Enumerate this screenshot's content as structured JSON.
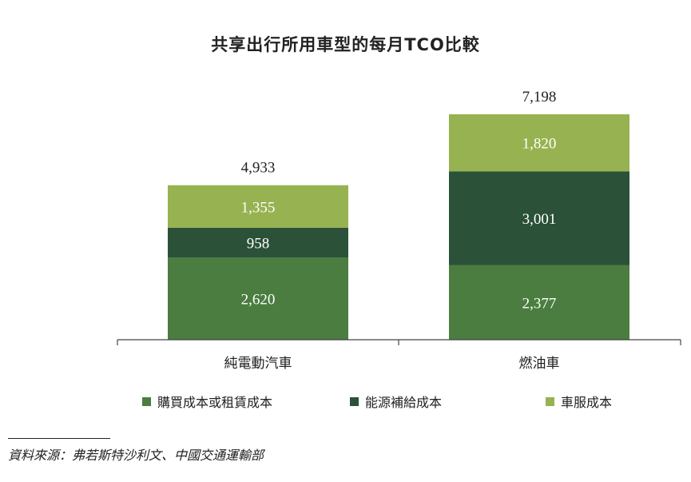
{
  "chart_data": {
    "type": "bar",
    "stacked": true,
    "title": "共享出行所用車型的每月TCO比較",
    "categories": [
      "純電動汽車",
      "燃油車"
    ],
    "series": [
      {
        "name": "購買成本或租賃成本",
        "values": [
          2620,
          2377
        ],
        "labels": [
          "2,620",
          "2,377"
        ],
        "color": "#4a7d3f"
      },
      {
        "name": "能源補給成本",
        "values": [
          958,
          3001
        ],
        "labels": [
          "958",
          "3,001"
        ],
        "color": "#2b5138"
      },
      {
        "name": "車服成本",
        "values": [
          1355,
          1820
        ],
        "labels": [
          "1,355",
          "1,820"
        ],
        "color": "#97b250"
      }
    ],
    "totals": [
      4933,
      7198
    ],
    "total_labels": [
      "4,933",
      "7,198"
    ],
    "ylim": [
      0,
      7800
    ],
    "grid": false,
    "legend_position": "bottom",
    "xlabel": "",
    "ylabel": ""
  },
  "source": "資料來源：弗若斯特沙利文、中國交通運輸部"
}
